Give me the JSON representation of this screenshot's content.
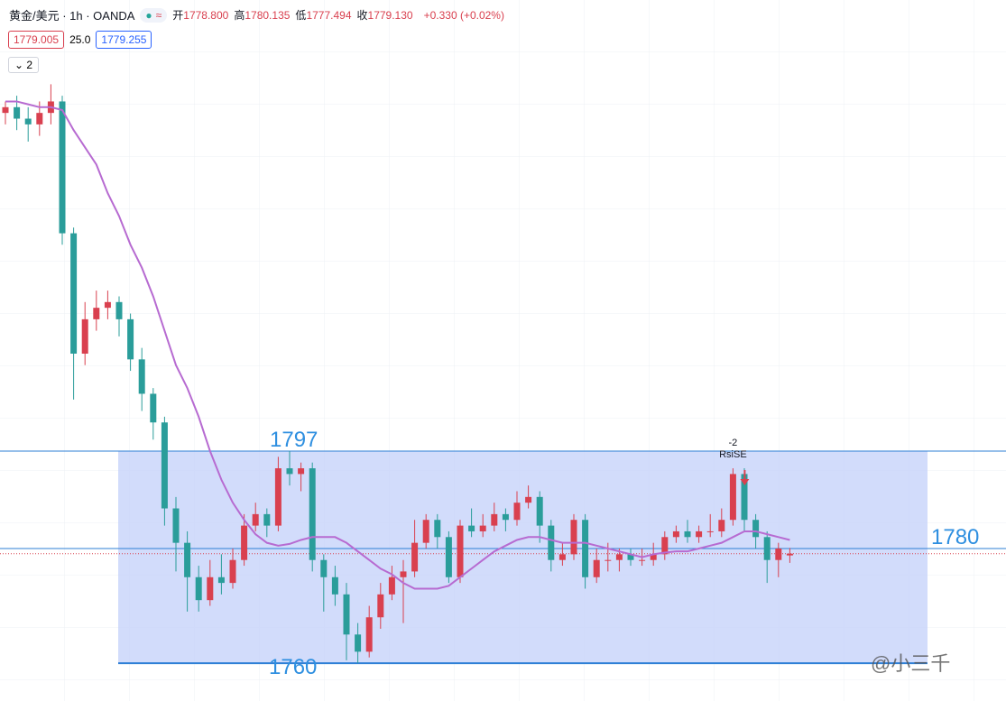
{
  "header": {
    "symbol": "黄金/美元 · 1h · OANDA",
    "ohlc": [
      {
        "k": "开",
        "v": "1778.800"
      },
      {
        "k": "高",
        "v": "1780.135"
      },
      {
        "k": "低",
        "v": "1777.494"
      },
      {
        "k": "收",
        "v": "1779.130"
      }
    ],
    "change": "+0.330 (+0.02%)",
    "bid": "1779.005",
    "spread": "25.0",
    "ask": "1779.255",
    "indicator_count": "2",
    "watermark": "@小三千"
  },
  "chart_data": {
    "type": "candlestick",
    "ylim": [
      1753.4,
      1875.7
    ],
    "up_color": "#d9404f",
    "down_color": "#2a9d9a",
    "ma_color": "#b76bd1",
    "levels": [
      1797,
      1780,
      1760
    ],
    "box": {
      "from": 1797,
      "to": 1760,
      "color": "#c7d3fa"
    },
    "signal": {
      "label": "-2",
      "name": "RsiSE"
    },
    "open": [
      1856,
      1857,
      1855,
      1854,
      1856,
      1858,
      1835,
      1814,
      1820,
      1822,
      1823,
      1820,
      1813,
      1807,
      1802,
      1787,
      1781,
      1775,
      1771,
      1775,
      1774,
      1778,
      1784,
      1786,
      1784,
      1794,
      1793,
      1794,
      1778,
      1775,
      1772,
      1765,
      1762,
      1768,
      1772,
      1775,
      1776,
      1781,
      1785,
      1782,
      1775,
      1784,
      1783,
      1784,
      1786,
      1785,
      1788,
      1789,
      1784,
      1778,
      1779,
      1785,
      1775,
      1778,
      1778,
      1779,
      1778,
      1778,
      1779,
      1782,
      1783,
      1782,
      1783,
      1783,
      1785,
      1793,
      1785,
      1782,
      1778,
      1778.8
    ],
    "high": [
      1858,
      1859,
      1857,
      1858,
      1861,
      1859,
      1836,
      1823,
      1825,
      1825,
      1824,
      1821,
      1815,
      1808,
      1803,
      1789,
      1783,
      1777,
      1778,
      1779,
      1780,
      1786,
      1788,
      1787,
      1796,
      1797,
      1795,
      1795,
      1779,
      1777,
      1774,
      1767,
      1770,
      1774,
      1777,
      1778,
      1785,
      1786,
      1786,
      1783,
      1785,
      1787,
      1786,
      1788,
      1787,
      1790,
      1791,
      1790,
      1785,
      1781,
      1786,
      1786,
      1780,
      1781,
      1780,
      1780,
      1780,
      1781,
      1783,
      1784,
      1785,
      1784,
      1786,
      1787,
      1794,
      1794,
      1786,
      1783,
      1781,
      1780.1
    ],
    "low": [
      1854,
      1853,
      1851,
      1852,
      1854,
      1833,
      1806,
      1812,
      1818,
      1820,
      1817,
      1811,
      1804,
      1799,
      1784,
      1776,
      1769,
      1769,
      1770,
      1772,
      1773,
      1777,
      1783,
      1782,
      1783,
      1791,
      1790,
      1776,
      1769,
      1770,
      1760.5,
      1760,
      1761,
      1766,
      1771,
      1767,
      1775,
      1780,
      1780,
      1774,
      1774,
      1782,
      1782,
      1783,
      1783,
      1784,
      1787,
      1781,
      1776,
      1777,
      1778,
      1773,
      1774,
      1776,
      1776,
      1777,
      1777,
      1777,
      1778,
      1781,
      1781,
      1781,
      1782,
      1782,
      1784,
      1783,
      1780,
      1774,
      1775,
      1777.5
    ],
    "close": [
      1857,
      1855,
      1854,
      1856,
      1858,
      1835,
      1814,
      1820,
      1822,
      1823,
      1820,
      1813,
      1807,
      1802,
      1787,
      1781,
      1775,
      1771,
      1775,
      1774,
      1778,
      1784,
      1786,
      1784,
      1794,
      1793,
      1794,
      1778,
      1775,
      1772,
      1765,
      1762,
      1768,
      1772,
      1775,
      1776,
      1781,
      1785,
      1782,
      1775,
      1784,
      1783,
      1784,
      1786,
      1785,
      1788,
      1789,
      1784,
      1778,
      1779,
      1785,
      1775,
      1778,
      1778,
      1779,
      1778,
      1778,
      1779,
      1782,
      1783,
      1782,
      1783,
      1783,
      1785,
      1793,
      1785,
      1782,
      1778,
      1780,
      1779.1
    ],
    "ma": [
      1858,
      1858,
      1857.5,
      1857,
      1857,
      1856.5,
      1853,
      1850,
      1847,
      1842,
      1838,
      1833,
      1829,
      1824,
      1818,
      1812,
      1808,
      1803,
      1797,
      1792,
      1788,
      1785,
      1782.5,
      1781,
      1780.5,
      1780.8,
      1781.5,
      1782,
      1782,
      1782,
      1781,
      1779.5,
      1778,
      1776.5,
      1775.5,
      1774,
      1773,
      1773,
      1773,
      1773.5,
      1775,
      1776.5,
      1778,
      1779.5,
      1780.5,
      1781.5,
      1782,
      1782,
      1781.5,
      1781,
      1781,
      1781,
      1780.5,
      1780,
      1779.5,
      1779,
      1778.5,
      1779,
      1779.3,
      1779.5,
      1779.5,
      1780,
      1780.5,
      1781,
      1782,
      1783,
      1783,
      1782.5,
      1782,
      1781.5
    ]
  }
}
